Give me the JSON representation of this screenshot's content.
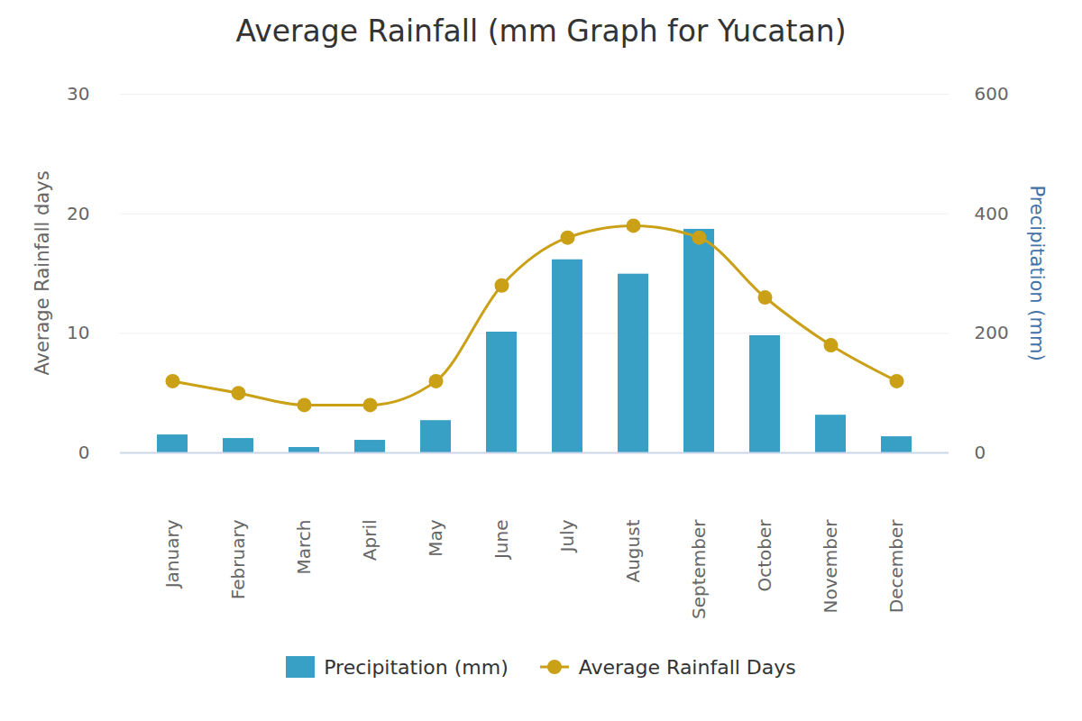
{
  "chart_data": {
    "type": "bar",
    "title": "Average Rainfall (mm Graph for Yucatan)",
    "categories": [
      "January",
      "February",
      "March",
      "April",
      "May",
      "June",
      "July",
      "August",
      "September",
      "October",
      "November",
      "December"
    ],
    "series": [
      {
        "name": "Precipitation (mm)",
        "type": "bar",
        "color": "#37a0c4",
        "axis": "y2",
        "values": [
          30,
          24,
          9,
          21,
          54,
          202,
          323,
          299,
          374,
          196,
          63,
          27
        ]
      },
      {
        "name": "Average Rainfall Days",
        "type": "line",
        "color": "#c9a016",
        "marker": "circle",
        "values": [
          6,
          5,
          4,
          4,
          6,
          14,
          18,
          19,
          18,
          13,
          9,
          6
        ]
      }
    ],
    "ylabel": "Average Rainfall days",
    "y2label": "Precipitation (mm)",
    "ylim": [
      0,
      30
    ],
    "yticks": [
      0,
      10,
      20,
      30
    ],
    "y2lim": [
      0,
      600
    ],
    "y2ticks": [
      0,
      200,
      400,
      600
    ],
    "grid": true,
    "legend": "bottom"
  }
}
